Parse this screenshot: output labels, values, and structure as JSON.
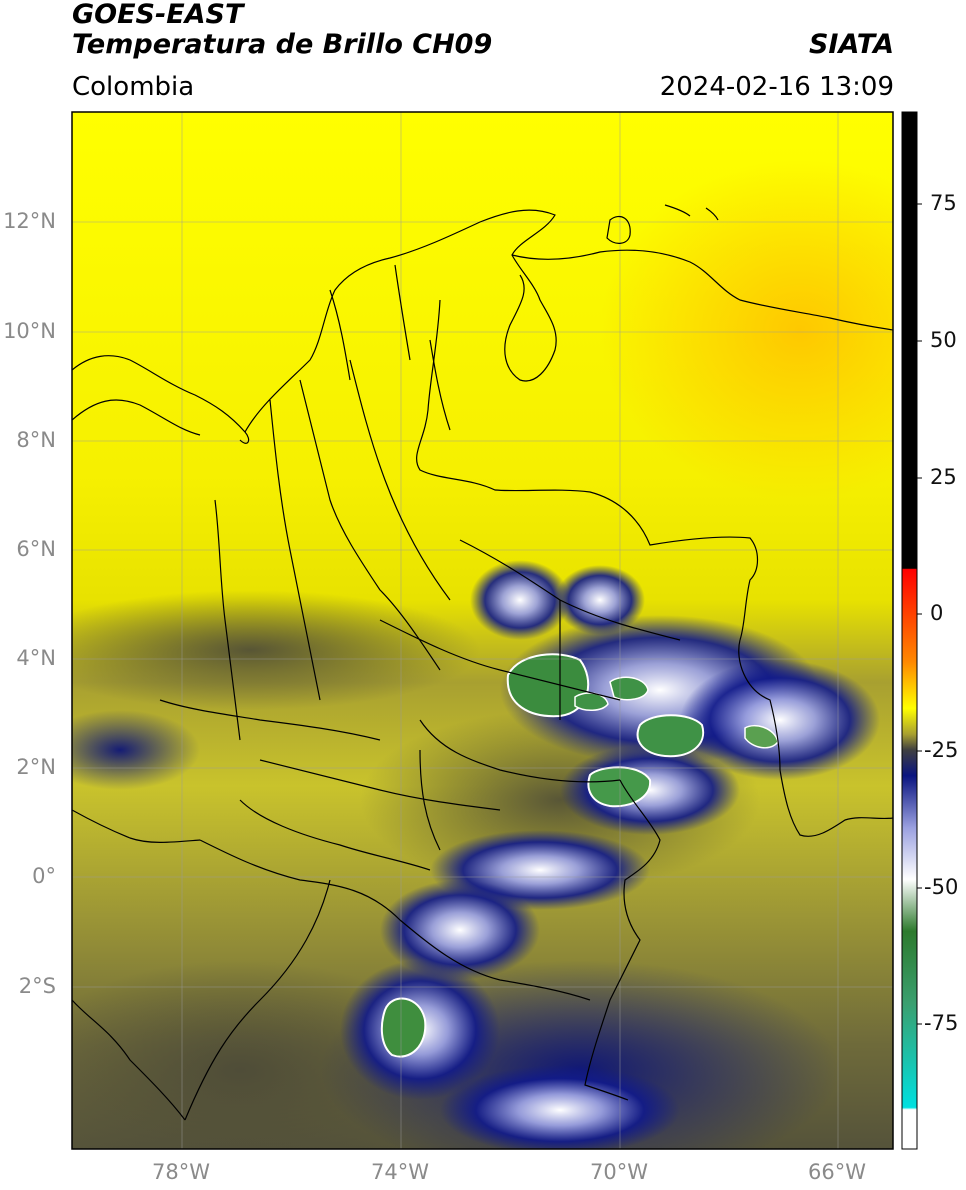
{
  "header": {
    "title_line1": "GOES-EAST",
    "title_line2": "Temperatura de Brillo CH09",
    "region": "Colombia",
    "source": "SIATA",
    "datetime": "2024-02-16 13:09"
  },
  "axes": {
    "lat_ticks": [
      "12°N",
      "10°N",
      "8°N",
      "6°N",
      "4°N",
      "2°N",
      "0°",
      "2°S"
    ],
    "lon_ticks": [
      "78°W",
      "74°W",
      "70°W",
      "66°W"
    ]
  },
  "colorbar": {
    "ticks": [
      "75",
      "50",
      "25",
      "0",
      "-25",
      "-50",
      "-75"
    ]
  },
  "colors": {
    "warm": "#ffff00",
    "mid": "#c8c228",
    "olive": "#5a5a38",
    "cold_blue": "#101a8a",
    "very_cold_green": "#3c8a3c",
    "border": "#000000"
  }
}
